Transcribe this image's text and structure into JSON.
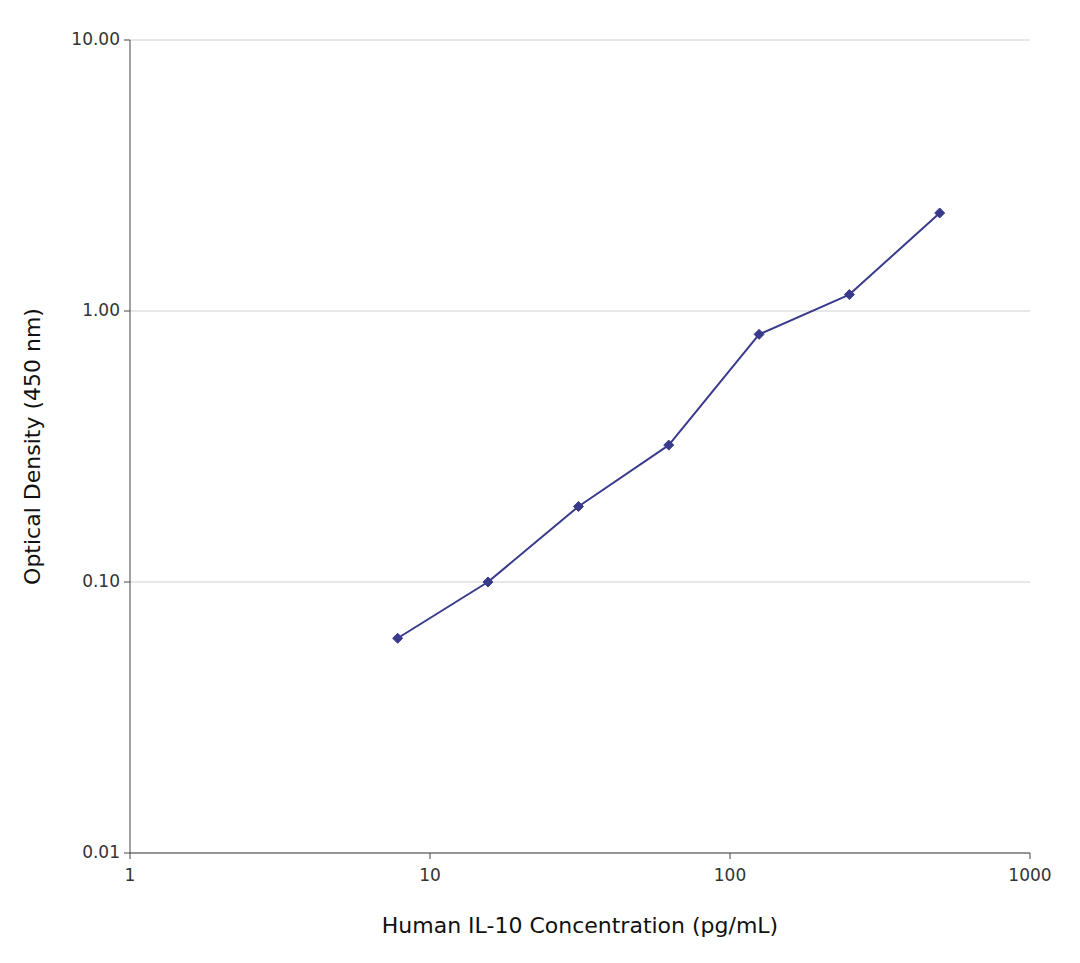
{
  "chart_data": {
    "type": "line",
    "x": [
      7.8,
      15.6,
      31.25,
      62.5,
      125,
      250,
      500
    ],
    "values": [
      0.062,
      0.1,
      0.19,
      0.32,
      0.82,
      1.15,
      2.3
    ],
    "color": "#3a3a8c",
    "marker": "diamond",
    "xlabel": "Human IL-10 Concentration (pg/mL)",
    "ylabel": "Optical Density (450 nm)",
    "xlim": [
      1,
      1000
    ],
    "ylim": [
      0.01,
      10.0
    ],
    "xticks": [
      1,
      10,
      100,
      1000
    ],
    "yticks": [
      {
        "value": 0.01,
        "label": "0.01"
      },
      {
        "value": 0.1,
        "label": "0.10"
      },
      {
        "value": 1,
        "label": "1.00"
      },
      {
        "value": 10,
        "label": "10.00"
      }
    ],
    "log": true,
    "grid": "y"
  }
}
